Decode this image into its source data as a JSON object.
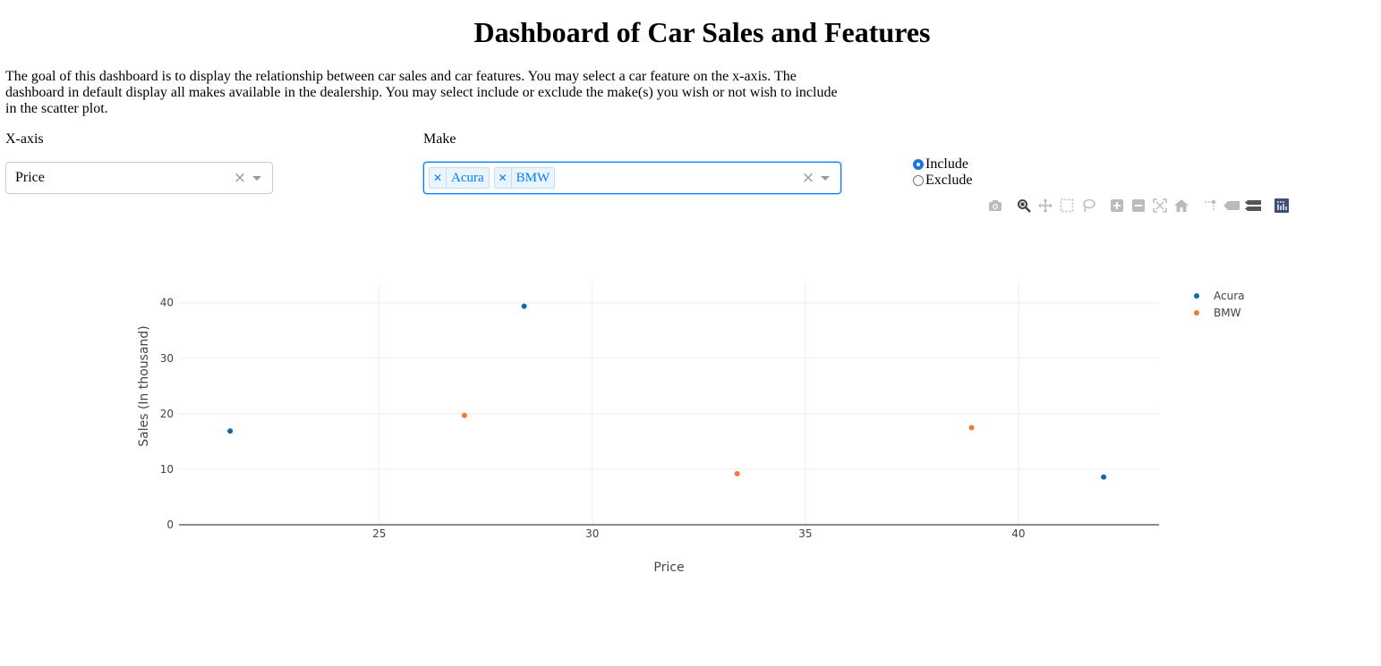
{
  "header": {
    "title": "Dashboard of Car Sales and Features",
    "description": "The goal of this dashboard is to display the relationship between car sales and car features. You may select a car feature on the x-axis. The dashboard in default display all makes available in the dealership. You may select include or exclude the make(s) you wish or not wish to include in the scatter plot."
  },
  "controls": {
    "xaxis": {
      "label": "X-axis",
      "value": "Price"
    },
    "make": {
      "label": "Make",
      "selected": [
        "Acura",
        "BMW"
      ]
    },
    "mode": {
      "options": [
        "Include",
        "Exclude"
      ],
      "selected": "Include"
    }
  },
  "modebar": {
    "icons": [
      "camera-icon",
      "zoom-icon",
      "pan-icon",
      "box-select-icon",
      "lasso-select-icon",
      "zoom-in-icon",
      "zoom-out-icon",
      "autoscale-icon",
      "reset-axes-icon",
      "spike-lines-icon",
      "hover-closest-icon",
      "hover-compare-icon",
      "plotly-logo-icon"
    ]
  },
  "colors": {
    "acura": "#0e6ba8",
    "bmw": "#f37735",
    "accent": "#1a73e8",
    "tag": "#007eff"
  },
  "chart_data": {
    "type": "scatter",
    "xlabel": "Price",
    "ylabel": "Sales (In thousand)",
    "xlim": [
      20.3,
      43.3
    ],
    "ylim": [
      0,
      43.5
    ],
    "xticks": [
      25,
      30,
      35,
      40
    ],
    "yticks": [
      0,
      10,
      20,
      30,
      40
    ],
    "grid": true,
    "legend_position": "top-right",
    "series": [
      {
        "name": "Acura",
        "color": "#0e6ba8",
        "points": [
          {
            "x": 21.5,
            "y": 16.9
          },
          {
            "x": 28.4,
            "y": 39.4
          },
          {
            "x": 42.0,
            "y": 8.6
          }
        ]
      },
      {
        "name": "BMW",
        "color": "#f37735",
        "points": [
          {
            "x": 27.0,
            "y": 19.7
          },
          {
            "x": 33.4,
            "y": 9.2
          },
          {
            "x": 38.9,
            "y": 17.5
          }
        ]
      }
    ]
  }
}
